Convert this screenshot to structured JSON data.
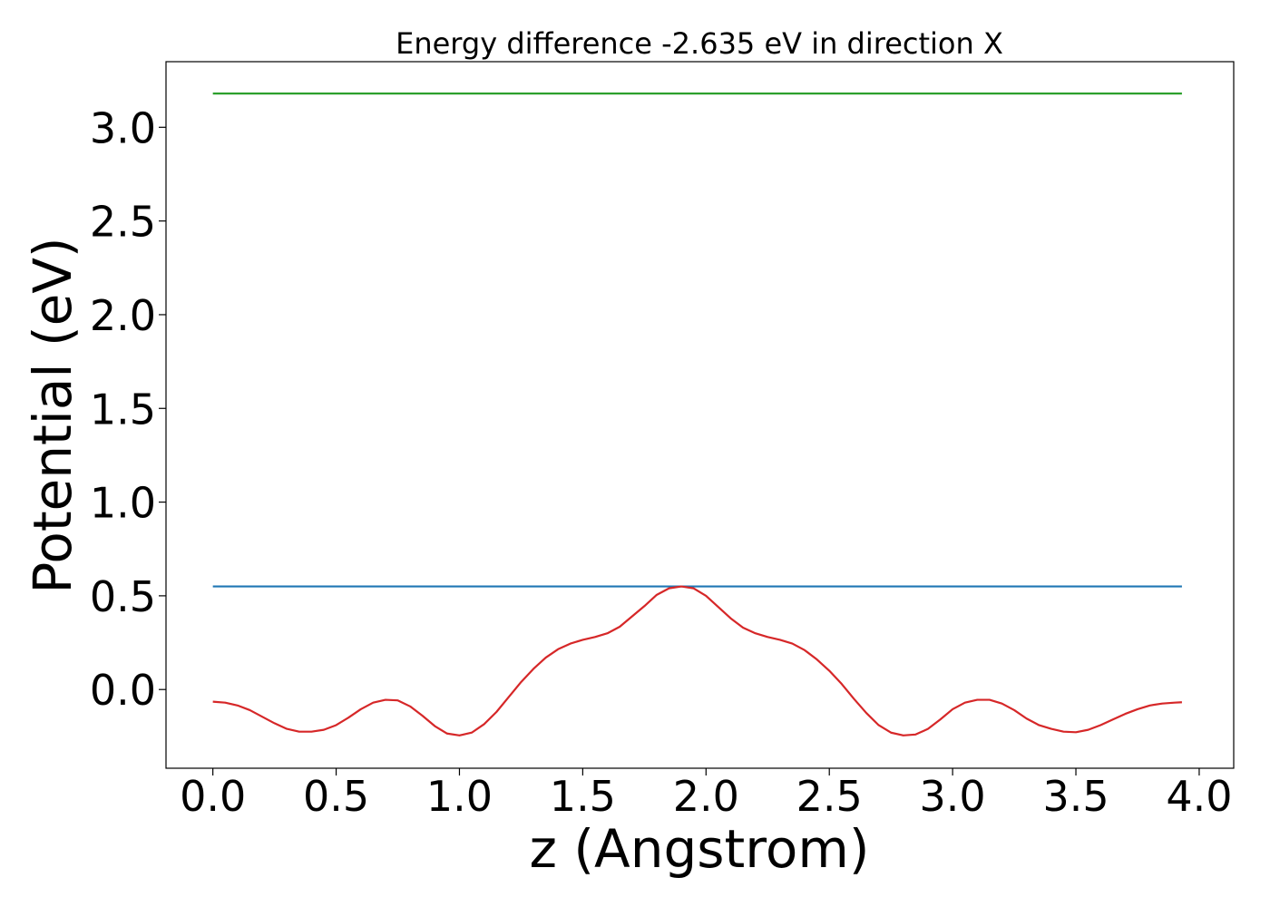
{
  "chart_data": {
    "type": "line",
    "title": "Energy difference -2.635 eV in direction X",
    "xlabel": "z (Angstrom)",
    "ylabel": "Potential (eV)",
    "xlim": [
      -0.19,
      4.14
    ],
    "ylim": [
      -0.42,
      3.35
    ],
    "xticks": [
      "0.0",
      "0.5",
      "1.0",
      "1.5",
      "2.0",
      "2.5",
      "3.0",
      "3.5",
      "4.0"
    ],
    "yticks": [
      "0.0",
      "0.5",
      "1.0",
      "1.5",
      "2.0",
      "2.5",
      "3.0"
    ],
    "grid": false,
    "series": [
      {
        "color": "#1f77b4",
        "x": [
          0.0,
          3.93
        ],
        "y": [
          0.55,
          0.55
        ]
      },
      {
        "color": "#2ca02c",
        "x": [
          0.0,
          3.93
        ],
        "y": [
          3.18,
          3.18
        ]
      },
      {
        "color": "#d62728",
        "x": [
          0.0,
          0.05,
          0.1,
          0.15,
          0.2,
          0.25,
          0.3,
          0.35,
          0.4,
          0.45,
          0.5,
          0.55,
          0.6,
          0.65,
          0.7,
          0.75,
          0.8,
          0.85,
          0.9,
          0.95,
          1.0,
          1.05,
          1.1,
          1.15,
          1.2,
          1.25,
          1.3,
          1.35,
          1.4,
          1.45,
          1.5,
          1.55,
          1.6,
          1.65,
          1.7,
          1.75,
          1.8,
          1.85,
          1.9,
          1.95,
          2.0,
          2.05,
          2.1,
          2.15,
          2.2,
          2.25,
          2.3,
          2.35,
          2.4,
          2.45,
          2.5,
          2.55,
          2.6,
          2.65,
          2.7,
          2.75,
          2.8,
          2.85,
          2.9,
          2.95,
          3.0,
          3.05,
          3.1,
          3.15,
          3.2,
          3.25,
          3.3,
          3.35,
          3.4,
          3.45,
          3.5,
          3.55,
          3.6,
          3.65,
          3.7,
          3.75,
          3.8,
          3.85,
          3.9,
          3.93
        ],
        "y": [
          -0.065,
          -0.07,
          -0.085,
          -0.11,
          -0.145,
          -0.18,
          -0.21,
          -0.225,
          -0.225,
          -0.215,
          -0.19,
          -0.15,
          -0.105,
          -0.07,
          -0.055,
          -0.058,
          -0.09,
          -0.14,
          -0.195,
          -0.235,
          -0.245,
          -0.23,
          -0.185,
          -0.12,
          -0.04,
          0.04,
          0.11,
          0.17,
          0.215,
          0.245,
          0.265,
          0.28,
          0.3,
          0.335,
          0.39,
          0.445,
          0.505,
          0.54,
          0.55,
          0.54,
          0.5,
          0.44,
          0.38,
          0.33,
          0.3,
          0.28,
          0.265,
          0.245,
          0.21,
          0.16,
          0.1,
          0.03,
          -0.05,
          -0.125,
          -0.19,
          -0.23,
          -0.245,
          -0.24,
          -0.21,
          -0.16,
          -0.105,
          -0.07,
          -0.055,
          -0.055,
          -0.075,
          -0.11,
          -0.155,
          -0.19,
          -0.21,
          -0.225,
          -0.228,
          -0.215,
          -0.19,
          -0.16,
          -0.13,
          -0.105,
          -0.085,
          -0.075,
          -0.07,
          -0.068
        ]
      }
    ]
  }
}
